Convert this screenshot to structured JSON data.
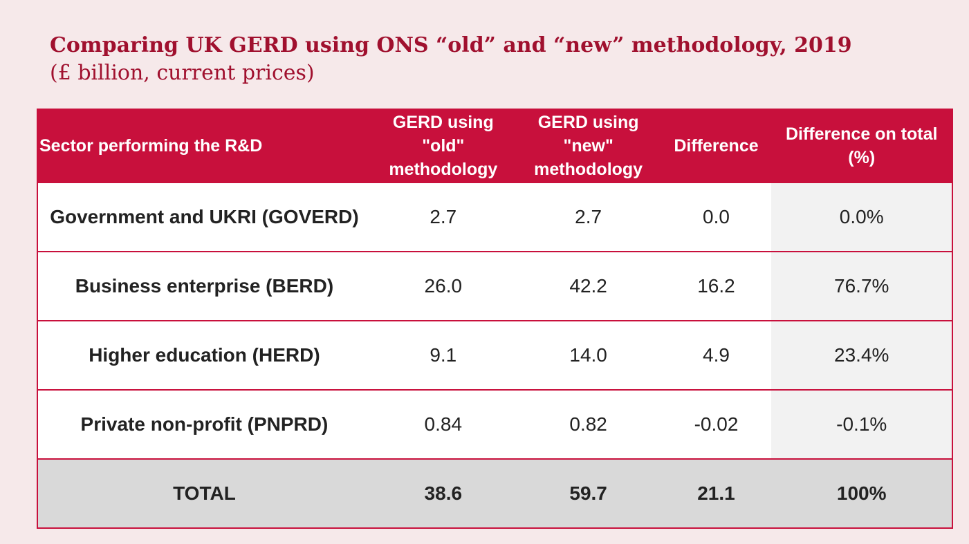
{
  "title": "Comparing UK GERD using ONS “old” and “new” methodology, 2019",
  "subtitle": "(£ billion, current prices)",
  "table": {
    "headers": [
      "Sector performing the R&D",
      "GERD using \"old\" methodology",
      "GERD using \"new\" methodology",
      "Difference",
      "Difference on total (%)"
    ],
    "rows": [
      {
        "sector": "Government and UKRI (GOVERD)",
        "old": "2.7",
        "new": "2.7",
        "difference": "0.0",
        "pct": "0.0%"
      },
      {
        "sector": "Business enterprise (BERD)",
        "old": "26.0",
        "new": "42.2",
        "difference": "16.2",
        "pct": "76.7%"
      },
      {
        "sector": "Higher education (HERD)",
        "old": "9.1",
        "new": "14.0",
        "difference": "4.9",
        "pct": "23.4%"
      },
      {
        "sector": "Private non-profit (PNPRD)",
        "old": "0.84",
        "new": "0.82",
        "difference": "-0.02",
        "pct": "-0.1%"
      }
    ],
    "total": {
      "sector": "TOTAL",
      "old": "38.6",
      "new": "59.7",
      "difference": "21.1",
      "pct": "100%"
    }
  },
  "colors": {
    "accent": "#c8103c",
    "title": "#a0102e",
    "background": "#f6e9ea",
    "total_row": "#d9d9d9"
  }
}
